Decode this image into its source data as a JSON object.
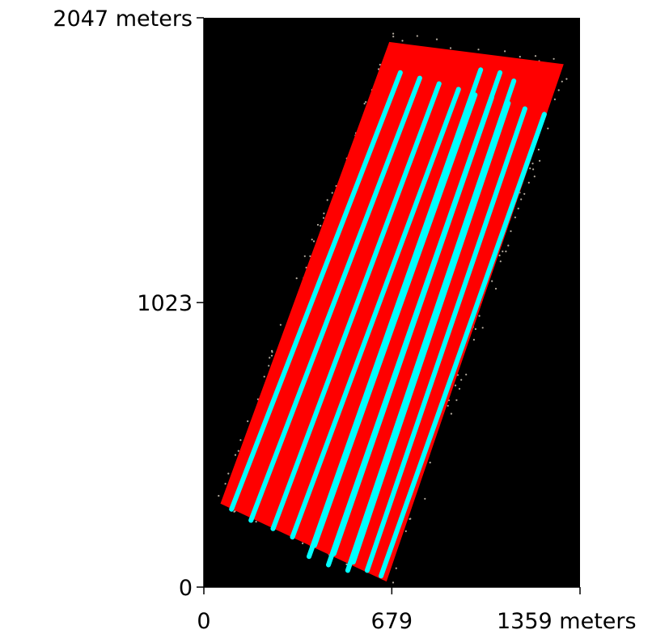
{
  "chart_data": {
    "type": "scatter",
    "title": "",
    "xlabel": "",
    "ylabel": "",
    "xlim": [
      0,
      1359
    ],
    "ylim": [
      0,
      2047
    ],
    "x_ticks": [
      {
        "value": 0,
        "label": "0"
      },
      {
        "value": 679,
        "label": "679"
      },
      {
        "value": 1359,
        "label": "1359 meters"
      }
    ],
    "y_ticks": [
      {
        "value": 0,
        "label": "0"
      },
      {
        "value": 1023,
        "label": "1023"
      },
      {
        "value": 2047,
        "label": "2047 meters"
      }
    ],
    "grid": false,
    "legend": "none",
    "colors": {
      "background": "#000000",
      "coverage": "#ff0000",
      "track": "#00ffff",
      "points": "#b5aca0"
    },
    "coverage_area": {
      "corners": [
        [
          60,
          300
        ],
        [
          660,
          20
        ],
        [
          1300,
          1880
        ],
        [
          670,
          1960
        ]
      ]
    },
    "track_lines": [
      [
        [
          100,
          280
        ],
        [
          710,
          1850
        ]
      ],
      [
        [
          170,
          240
        ],
        [
          780,
          1830
        ]
      ],
      [
        [
          250,
          210
        ],
        [
          850,
          1810
        ]
      ],
      [
        [
          320,
          180
        ],
        [
          920,
          1790
        ]
      ],
      [
        [
          400,
          150
        ],
        [
          980,
          1770
        ]
      ],
      [
        [
          470,
          120
        ],
        [
          1040,
          1760
        ]
      ],
      [
        [
          540,
          90
        ],
        [
          1100,
          1740
        ]
      ],
      [
        [
          590,
          60
        ],
        [
          1160,
          1720
        ]
      ],
      [
        [
          640,
          40
        ],
        [
          1230,
          1700
        ]
      ],
      [
        [
          380,
          110
        ],
        [
          1000,
          1860
        ]
      ],
      [
        [
          450,
          80
        ],
        [
          1070,
          1850
        ]
      ],
      [
        [
          520,
          60
        ],
        [
          1120,
          1820
        ]
      ]
    ],
    "point_cloud": {
      "band": [
        [
          40,
          300
        ],
        [
          690,
          0
        ],
        [
          1340,
          1890
        ],
        [
          660,
          2010
        ]
      ],
      "count": 900
    }
  }
}
